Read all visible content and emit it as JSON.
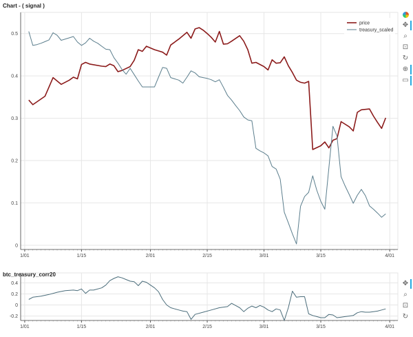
{
  "main_title": "Chart - ( signal )",
  "corr_title": "btc_treasury_corr20",
  "colors": {
    "price": "#8b1a1a",
    "treasury": "#5a7d8c",
    "corr": "#4a6c7a",
    "grid": "#e6e6e6",
    "axis": "#444444"
  },
  "toolbar": [
    {
      "name": "bokeh-logo-icon"
    },
    {
      "name": "pan-tool-icon",
      "glyph": "✥",
      "active": true
    },
    {
      "name": "zoom-tool-icon",
      "glyph": "⌕"
    },
    {
      "name": "box-zoom-tool-icon",
      "glyph": "⊡"
    },
    {
      "name": "reset-tool-icon",
      "glyph": "↻"
    },
    {
      "name": "crosshair-tool-icon",
      "glyph": "⊕",
      "active": true
    },
    {
      "name": "hover-tool-icon",
      "glyph": "▭",
      "active": true
    }
  ],
  "chart_data": [
    {
      "type": "line",
      "title": "Chart - ( signal )",
      "x_unit": "day-of-year",
      "xticks": [
        {
          "x": 1,
          "label": "1/01"
        },
        {
          "x": 15,
          "label": "1/15"
        },
        {
          "x": 32,
          "label": "2/01"
        },
        {
          "x": 46,
          "label": "2/15"
        },
        {
          "x": 60,
          "label": "3/01"
        },
        {
          "x": 74,
          "label": "3/15"
        },
        {
          "x": 91,
          "label": "4/01"
        }
      ],
      "xlim": [
        0,
        93
      ],
      "ylim": [
        -0.01,
        0.55
      ],
      "yticks": [
        0,
        0.1,
        0.2,
        0.3,
        0.4,
        0.5
      ],
      "grid": true,
      "legend": "top-right",
      "series": [
        {
          "name": "price",
          "points": [
            [
              2,
              0.343
            ],
            [
              3,
              0.332
            ],
            [
              6,
              0.352
            ],
            [
              8,
              0.396
            ],
            [
              10,
              0.38
            ],
            [
              12,
              0.39
            ],
            [
              13,
              0.397
            ],
            [
              14,
              0.393
            ],
            [
              15,
              0.427
            ],
            [
              16,
              0.432
            ],
            [
              17,
              0.428
            ],
            [
              20,
              0.423
            ],
            [
              21,
              0.422
            ],
            [
              22,
              0.428
            ],
            [
              23,
              0.424
            ],
            [
              24,
              0.41
            ],
            [
              25,
              0.413
            ],
            [
              27,
              0.422
            ],
            [
              28,
              0.437
            ],
            [
              29,
              0.462
            ],
            [
              30,
              0.458
            ],
            [
              31,
              0.47
            ],
            [
              32,
              0.466
            ],
            [
              33,
              0.462
            ],
            [
              34,
              0.459
            ],
            [
              35,
              0.456
            ],
            [
              36,
              0.449
            ],
            [
              37,
              0.473
            ],
            [
              39,
              0.487
            ],
            [
              41,
              0.503
            ],
            [
              42,
              0.489
            ],
            [
              43,
              0.511
            ],
            [
              44,
              0.514
            ],
            [
              45,
              0.508
            ],
            [
              46,
              0.5
            ],
            [
              47,
              0.491
            ],
            [
              48,
              0.48
            ],
            [
              49,
              0.505
            ],
            [
              50,
              0.475
            ],
            [
              51,
              0.476
            ],
            [
              52,
              0.482
            ],
            [
              54,
              0.495
            ],
            [
              55,
              0.482
            ],
            [
              56,
              0.462
            ],
            [
              57,
              0.43
            ],
            [
              58,
              0.432
            ],
            [
              60,
              0.422
            ],
            [
              61,
              0.414
            ],
            [
              62,
              0.438
            ],
            [
              63,
              0.43
            ],
            [
              64,
              0.431
            ],
            [
              65,
              0.445
            ],
            [
              66,
              0.424
            ],
            [
              67,
              0.408
            ],
            [
              68,
              0.39
            ],
            [
              69,
              0.385
            ],
            [
              70,
              0.383
            ],
            [
              71,
              0.387
            ],
            [
              72,
              0.226
            ],
            [
              74,
              0.235
            ],
            [
              75,
              0.244
            ],
            [
              76,
              0.23
            ],
            [
              77,
              0.248
            ],
            [
              78,
              0.252
            ],
            [
              79,
              0.292
            ],
            [
              81,
              0.28
            ],
            [
              82,
              0.27
            ],
            [
              83,
              0.314
            ],
            [
              84,
              0.32
            ],
            [
              86,
              0.322
            ],
            [
              87,
              0.305
            ],
            [
              88,
              0.29
            ],
            [
              89,
              0.276
            ],
            [
              90,
              0.301
            ]
          ]
        },
        {
          "name": "treasury_scaled",
          "points": [
            [
              2,
              0.505
            ],
            [
              3,
              0.472
            ],
            [
              4,
              0.474
            ],
            [
              5,
              0.477
            ],
            [
              6,
              0.481
            ],
            [
              7,
              0.485
            ],
            [
              8,
              0.502
            ],
            [
              9,
              0.496
            ],
            [
              10,
              0.484
            ],
            [
              12,
              0.49
            ],
            [
              13,
              0.493
            ],
            [
              14,
              0.48
            ],
            [
              15,
              0.472
            ],
            [
              16,
              0.478
            ],
            [
              17,
              0.489
            ],
            [
              18,
              0.482
            ],
            [
              19,
              0.477
            ],
            [
              20,
              0.47
            ],
            [
              21,
              0.463
            ],
            [
              22,
              0.462
            ],
            [
              23,
              0.443
            ],
            [
              24,
              0.43
            ],
            [
              25,
              0.415
            ],
            [
              26,
              0.404
            ],
            [
              27,
              0.418
            ],
            [
              28,
              0.403
            ],
            [
              29,
              0.388
            ],
            [
              30,
              0.374
            ],
            [
              33,
              0.374
            ],
            [
              34,
              0.397
            ],
            [
              35,
              0.42
            ],
            [
              36,
              0.418
            ],
            [
              37,
              0.396
            ],
            [
              39,
              0.39
            ],
            [
              40,
              0.383
            ],
            [
              41,
              0.397
            ],
            [
              42,
              0.412
            ],
            [
              43,
              0.407
            ],
            [
              44,
              0.398
            ],
            [
              45,
              0.396
            ],
            [
              46,
              0.394
            ],
            [
              47,
              0.391
            ],
            [
              48,
              0.386
            ],
            [
              49,
              0.391
            ],
            [
              50,
              0.373
            ],
            [
              51,
              0.354
            ],
            [
              52,
              0.343
            ],
            [
              53,
              0.33
            ],
            [
              54,
              0.318
            ],
            [
              55,
              0.303
            ],
            [
              56,
              0.296
            ],
            [
              57,
              0.294
            ],
            [
              58,
              0.229
            ],
            [
              59,
              0.223
            ],
            [
              60,
              0.218
            ],
            [
              61,
              0.211
            ],
            [
              62,
              0.186
            ],
            [
              63,
              0.18
            ],
            [
              64,
              0.156
            ],
            [
              65,
              0.078
            ],
            [
              66,
              0.053
            ],
            [
              67,
              0.027
            ],
            [
              68,
              0.003
            ],
            [
              69,
              0.092
            ],
            [
              70,
              0.115
            ],
            [
              71,
              0.125
            ],
            [
              72,
              0.164
            ],
            [
              73,
              0.13
            ],
            [
              74,
              0.104
            ],
            [
              75,
              0.085
            ],
            [
              76,
              0.183
            ],
            [
              77,
              0.281
            ],
            [
              78,
              0.258
            ],
            [
              79,
              0.162
            ],
            [
              80,
              0.14
            ],
            [
              81,
              0.12
            ],
            [
              82,
              0.099
            ],
            [
              83,
              0.118
            ],
            [
              84,
              0.132
            ],
            [
              85,
              0.117
            ],
            [
              86,
              0.093
            ],
            [
              87,
              0.085
            ],
            [
              88,
              0.076
            ],
            [
              89,
              0.066
            ],
            [
              90,
              0.074
            ]
          ]
        }
      ]
    },
    {
      "type": "line",
      "title": "btc_treasury_corr20",
      "x_unit": "day-of-year",
      "xticks": [
        {
          "x": 1,
          "label": "1/01"
        },
        {
          "x": 15,
          "label": "1/15"
        },
        {
          "x": 32,
          "label": "2/01"
        },
        {
          "x": 46,
          "label": "2/15"
        },
        {
          "x": 60,
          "label": "3/01"
        },
        {
          "x": 74,
          "label": "3/15"
        },
        {
          "x": 91,
          "label": "4/01"
        }
      ],
      "xlim": [
        0,
        93
      ],
      "ylim": [
        -0.28,
        0.58
      ],
      "yticks": [
        -0.2,
        0,
        0.2,
        0.4
      ],
      "grid": true,
      "series": [
        {
          "name": "btc_treasury_corr20",
          "points": [
            [
              2,
              0.1
            ],
            [
              3,
              0.14
            ],
            [
              5,
              0.16
            ],
            [
              7,
              0.19
            ],
            [
              9,
              0.23
            ],
            [
              11,
              0.26
            ],
            [
              13,
              0.27
            ],
            [
              14,
              0.26
            ],
            [
              15,
              0.29
            ],
            [
              16,
              0.21
            ],
            [
              17,
              0.27
            ],
            [
              18,
              0.27
            ],
            [
              20,
              0.31
            ],
            [
              21,
              0.36
            ],
            [
              22,
              0.44
            ],
            [
              23,
              0.48
            ],
            [
              24,
              0.51
            ],
            [
              25,
              0.49
            ],
            [
              26,
              0.46
            ],
            [
              27,
              0.43
            ],
            [
              28,
              0.42
            ],
            [
              29,
              0.35
            ],
            [
              30,
              0.43
            ],
            [
              31,
              0.41
            ],
            [
              32,
              0.36
            ],
            [
              33,
              0.31
            ],
            [
              34,
              0.24
            ],
            [
              35,
              0.1
            ],
            [
              36,
              0.0
            ],
            [
              37,
              -0.05
            ],
            [
              38,
              -0.07
            ],
            [
              39,
              -0.09
            ],
            [
              40,
              -0.11
            ],
            [
              41,
              -0.12
            ],
            [
              42,
              -0.26
            ],
            [
              43,
              -0.17
            ],
            [
              45,
              -0.13
            ],
            [
              47,
              -0.09
            ],
            [
              49,
              -0.05
            ],
            [
              51,
              -0.03
            ],
            [
              52,
              0.03
            ],
            [
              53,
              -0.01
            ],
            [
              54,
              -0.05
            ],
            [
              55,
              -0.12
            ],
            [
              56,
              -0.06
            ],
            [
              57,
              -0.02
            ],
            [
              58,
              -0.05
            ],
            [
              59,
              -0.01
            ],
            [
              60,
              -0.04
            ],
            [
              61,
              -0.09
            ],
            [
              62,
              -0.12
            ],
            [
              63,
              -0.07
            ],
            [
              64,
              -0.09
            ],
            [
              65,
              -0.28
            ],
            [
              66,
              -0.05
            ],
            [
              67,
              0.25
            ],
            [
              68,
              0.14
            ],
            [
              69,
              0.15
            ],
            [
              70,
              0.15
            ],
            [
              71,
              -0.16
            ],
            [
              72,
              -0.19
            ],
            [
              73,
              -0.21
            ],
            [
              74,
              -0.23
            ],
            [
              75,
              -0.23
            ],
            [
              76,
              -0.17
            ],
            [
              77,
              -0.18
            ],
            [
              78,
              -0.23
            ],
            [
              79,
              -0.22
            ],
            [
              80,
              -0.21
            ],
            [
              81,
              -0.2
            ],
            [
              82,
              -0.19
            ],
            [
              83,
              -0.14
            ],
            [
              84,
              -0.12
            ],
            [
              85,
              -0.13
            ],
            [
              86,
              -0.13
            ],
            [
              87,
              -0.12
            ],
            [
              88,
              -0.11
            ],
            [
              89,
              -0.09
            ],
            [
              90,
              -0.07
            ]
          ]
        }
      ]
    }
  ]
}
